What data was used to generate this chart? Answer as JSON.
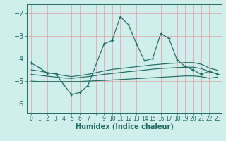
{
  "xlabel": "Humidex (Indice chaleur)",
  "bg_color": "#d0eeec",
  "line_color": "#216b65",
  "grid_color": "#dba0a0",
  "ylim": [
    -6.4,
    -1.6
  ],
  "xlim": [
    -0.5,
    23.5
  ],
  "yticks": [
    -6,
    -5,
    -4,
    -3,
    -2
  ],
  "xtick_labels": [
    "0",
    "1",
    "2",
    "3",
    "4",
    "5",
    "6",
    "7",
    "",
    "9",
    "10",
    "11",
    "12",
    "13",
    "14",
    "15",
    "16",
    "17",
    "18",
    "19",
    "20",
    "21",
    "22",
    "23"
  ],
  "line_a_x": [
    0,
    1,
    2,
    3,
    4,
    5,
    6,
    7,
    9,
    10,
    11,
    12,
    13,
    14,
    15,
    16,
    17,
    18,
    19,
    20,
    21,
    22,
    23
  ],
  "line_a_y": [
    -4.2,
    -4.4,
    -4.65,
    -4.65,
    -5.15,
    -5.6,
    -5.5,
    -5.2,
    -3.35,
    -3.2,
    -2.15,
    -2.5,
    -3.35,
    -4.1,
    -4.0,
    -2.9,
    -3.1,
    -4.05,
    -4.35,
    -4.5,
    -4.7,
    -4.55,
    -4.7
  ],
  "line_b_x": [
    0,
    1,
    2,
    3,
    4,
    5,
    6,
    7,
    9,
    10,
    11,
    12,
    13,
    14,
    15,
    16,
    17,
    18,
    19,
    20,
    21,
    22,
    23
  ],
  "line_b_y": [
    -4.5,
    -4.55,
    -4.62,
    -4.68,
    -4.75,
    -4.8,
    -4.75,
    -4.7,
    -4.55,
    -4.48,
    -4.44,
    -4.4,
    -4.36,
    -4.32,
    -4.28,
    -4.25,
    -4.22,
    -4.2,
    -4.18,
    -4.18,
    -4.25,
    -4.42,
    -4.52
  ],
  "line_c_x": [
    0,
    1,
    2,
    3,
    4,
    5,
    6,
    7,
    9,
    10,
    11,
    12,
    13,
    14,
    15,
    16,
    17,
    18,
    19,
    20,
    21,
    22,
    23
  ],
  "line_c_y": [
    -4.7,
    -4.74,
    -4.78,
    -4.82,
    -4.86,
    -4.88,
    -4.84,
    -4.8,
    -4.7,
    -4.66,
    -4.62,
    -4.58,
    -4.55,
    -4.51,
    -4.47,
    -4.44,
    -4.42,
    -4.4,
    -4.38,
    -4.38,
    -4.44,
    -4.58,
    -4.68
  ],
  "line_d_x": [
    0,
    1,
    2,
    3,
    4,
    5,
    6,
    7,
    9,
    10,
    11,
    12,
    13,
    14,
    15,
    16,
    17,
    18,
    19,
    20,
    21,
    22,
    23
  ],
  "line_d_y": [
    -5.0,
    -5.02,
    -5.02,
    -5.02,
    -5.02,
    -5.02,
    -5.02,
    -5.0,
    -4.97,
    -4.95,
    -4.93,
    -4.91,
    -4.89,
    -4.87,
    -4.85,
    -4.83,
    -4.81,
    -4.79,
    -4.77,
    -4.77,
    -4.8,
    -4.87,
    -4.82
  ]
}
